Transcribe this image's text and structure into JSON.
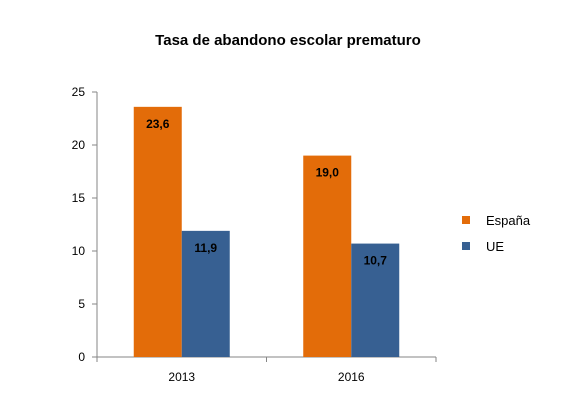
{
  "chart_data": {
    "type": "bar",
    "title": "Tasa de abandono escolar prematuro",
    "categories": [
      "2013",
      "2016"
    ],
    "series": [
      {
        "name": "España",
        "values": [
          23.6,
          19.0
        ],
        "labels": [
          "23,6",
          "19,0"
        ],
        "color": "#E36C09"
      },
      {
        "name": "UE",
        "values": [
          11.9,
          10.7
        ],
        "labels": [
          "11,9",
          "10,7"
        ],
        "color": "#376092"
      }
    ],
    "ylim": [
      0,
      25
    ],
    "yticks": [
      0,
      5,
      10,
      15,
      20,
      25
    ],
    "grid": false,
    "legend": "right"
  }
}
